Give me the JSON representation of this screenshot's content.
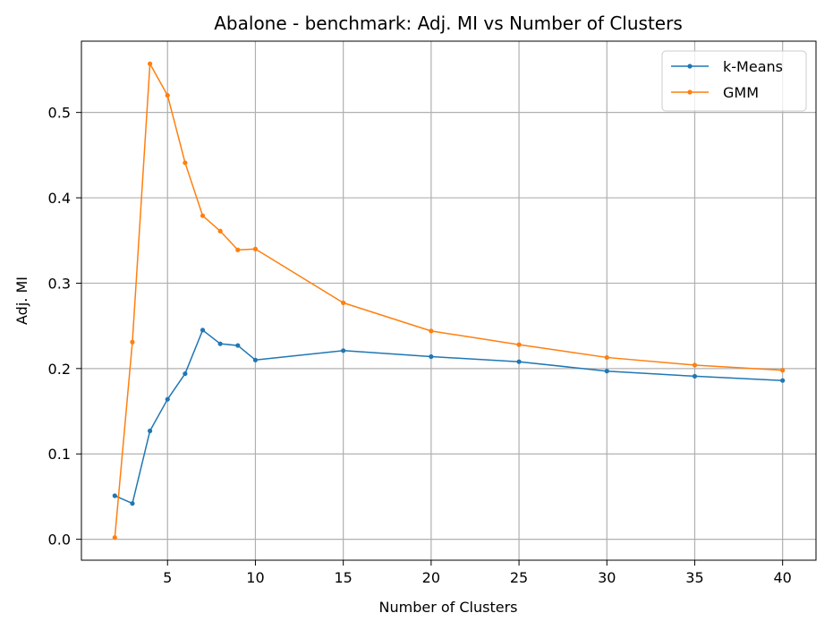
{
  "chart_data": {
    "type": "line",
    "title": "Abalone - benchmark: Adj. MI vs Number of Clusters",
    "xlabel": "Number of Clusters",
    "ylabel": "Adj. MI",
    "xlim": [
      0.1,
      41.9
    ],
    "ylim": [
      -0.0245,
      0.5835
    ],
    "xticks": [
      5,
      10,
      15,
      20,
      25,
      30,
      35,
      40
    ],
    "yticks": [
      0.0,
      0.1,
      0.2,
      0.3,
      0.4,
      0.5
    ],
    "ytick_labels": [
      "0.0",
      "0.1",
      "0.2",
      "0.3",
      "0.4",
      "0.5"
    ],
    "grid": true,
    "legend_position": "top-right",
    "x": [
      2,
      3,
      4,
      5,
      6,
      7,
      8,
      9,
      10,
      15,
      20,
      25,
      30,
      35,
      40
    ],
    "series": [
      {
        "name": "k-Means",
        "color": "#1f77b4",
        "values": [
          0.051,
          0.042,
          0.127,
          0.164,
          0.194,
          0.245,
          0.229,
          0.227,
          0.21,
          0.221,
          0.214,
          0.208,
          0.197,
          0.191,
          0.186
        ]
      },
      {
        "name": "GMM",
        "color": "#ff7f0e",
        "values": [
          0.002,
          0.231,
          0.557,
          0.52,
          0.441,
          0.379,
          0.361,
          0.339,
          0.34,
          0.277,
          0.244,
          0.228,
          0.213,
          0.204,
          0.198
        ]
      }
    ]
  }
}
